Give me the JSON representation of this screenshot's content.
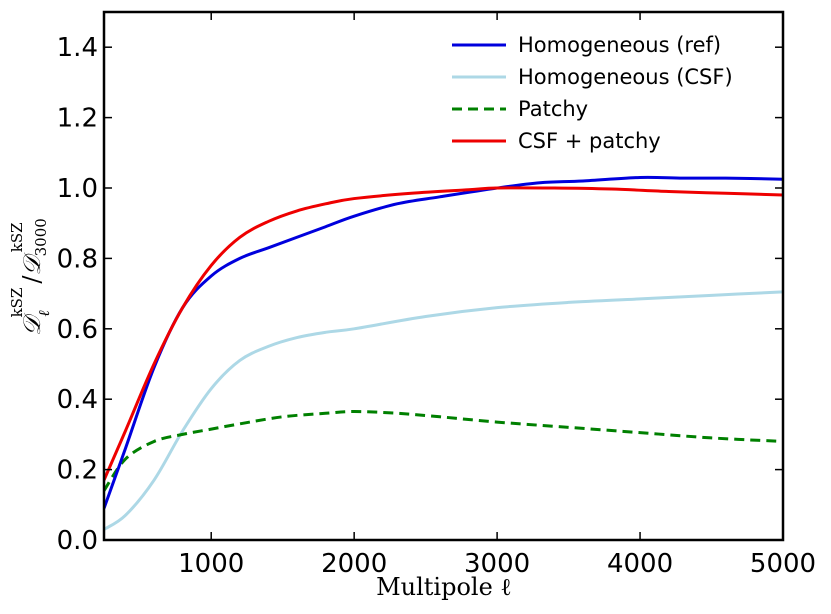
{
  "chart_data": {
    "type": "line",
    "title": "",
    "xlabel": "Multipole ℓ",
    "ylabel": "𝒟ℓkSZ / 𝒟3000kSZ",
    "ylabel_parts": {
      "numer": "𝒟",
      "numer_sub": "ℓ",
      "numer_sup": "kSZ",
      "slash": "/",
      "denom": "𝒟",
      "denom_sub": "3000",
      "denom_sup": "kSZ"
    },
    "xlim": [
      250,
      5000
    ],
    "ylim": [
      0.0,
      1.5
    ],
    "xticks": [
      1000,
      2000,
      3000,
      4000,
      5000
    ],
    "xtick_labels": [
      "1000",
      "2000",
      "3000",
      "4000",
      "5000"
    ],
    "yticks": [
      0.0,
      0.2,
      0.4,
      0.6,
      0.8,
      1.0,
      1.2,
      1.4
    ],
    "ytick_labels": [
      "0.0",
      "0.2",
      "0.4",
      "0.6",
      "0.8",
      "1.0",
      "1.2",
      "1.4"
    ],
    "legend_position": "top-right",
    "series": [
      {
        "name": "Homogeneous (ref)",
        "color": "#0000dd",
        "style": "solid",
        "x": [
          250,
          400,
          600,
          800,
          1000,
          1200,
          1400,
          1600,
          1800,
          2000,
          2300,
          2600,
          3000,
          3300,
          3600,
          4000,
          4300,
          4600,
          5000
        ],
        "y": [
          0.09,
          0.26,
          0.49,
          0.66,
          0.75,
          0.8,
          0.83,
          0.86,
          0.89,
          0.92,
          0.955,
          0.975,
          1.0,
          1.015,
          1.02,
          1.03,
          1.028,
          1.028,
          1.025
        ]
      },
      {
        "name": "Homogeneous (CSF)",
        "color": "#add8e6",
        "style": "solid",
        "x": [
          250,
          400,
          600,
          800,
          1000,
          1200,
          1400,
          1600,
          1800,
          2000,
          2500,
          3000,
          3500,
          4000,
          4500,
          5000
        ],
        "y": [
          0.03,
          0.07,
          0.17,
          0.31,
          0.43,
          0.51,
          0.55,
          0.575,
          0.59,
          0.6,
          0.635,
          0.66,
          0.675,
          0.685,
          0.695,
          0.705
        ]
      },
      {
        "name": "Patchy",
        "color": "#008000",
        "style": "dashed",
        "x": [
          250,
          400,
          600,
          800,
          1000,
          1200,
          1500,
          1800,
          2000,
          2300,
          2600,
          3000,
          3500,
          4000,
          4500,
          5000
        ],
        "y": [
          0.14,
          0.23,
          0.28,
          0.3,
          0.315,
          0.33,
          0.35,
          0.36,
          0.365,
          0.36,
          0.35,
          0.335,
          0.32,
          0.305,
          0.29,
          0.28
        ]
      },
      {
        "name": "CSF + patchy",
        "color": "#ee0000",
        "style": "solid",
        "x": [
          250,
          400,
          600,
          800,
          1000,
          1200,
          1400,
          1600,
          1800,
          2000,
          2400,
          2800,
          3000,
          3400,
          3800,
          4200,
          4600,
          5000
        ],
        "y": [
          0.17,
          0.31,
          0.5,
          0.66,
          0.78,
          0.86,
          0.905,
          0.935,
          0.955,
          0.97,
          0.985,
          0.995,
          1.0,
          1.0,
          0.997,
          0.99,
          0.985,
          0.98
        ]
      }
    ]
  }
}
